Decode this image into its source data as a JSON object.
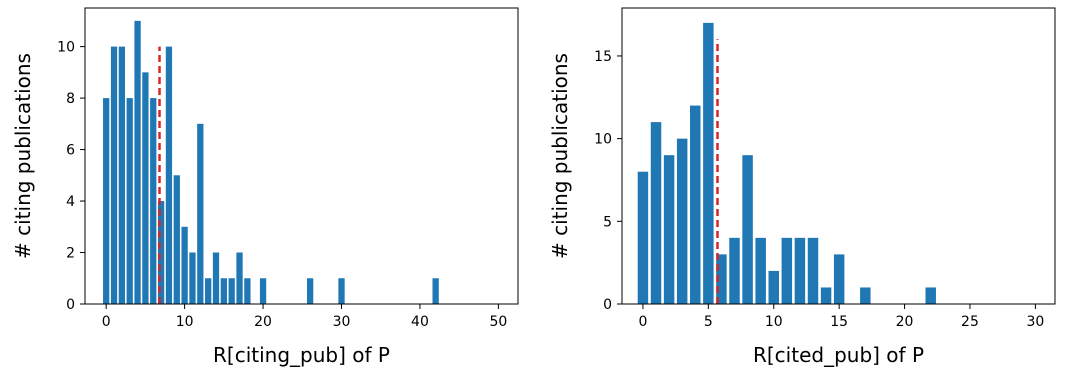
{
  "colors": {
    "bar": "#1f77b4",
    "marker": "#d62728",
    "axis": "#000000"
  },
  "chart_data": [
    {
      "type": "bar",
      "xlabel": "R[citing_pub] of P",
      "ylabel": "# citing publications",
      "xlim": [
        -2.7,
        52.5
      ],
      "ylim": [
        0,
        11.5
      ],
      "xticks": [
        0,
        10,
        20,
        30,
        40,
        50
      ],
      "yticks": [
        0,
        2,
        4,
        6,
        8,
        10
      ],
      "x": [
        0,
        1,
        2,
        3,
        4,
        5,
        6,
        7,
        8,
        9,
        10,
        11,
        12,
        13,
        14,
        15,
        16,
        17,
        18,
        20,
        26,
        30,
        42
      ],
      "values": [
        8,
        10,
        10,
        8,
        11,
        9,
        8,
        4,
        10,
        5,
        3,
        2,
        7,
        1,
        2,
        1,
        1,
        2,
        1,
        1,
        1,
        1,
        1
      ],
      "reference_line": {
        "x": 6.8,
        "y_top": 10
      },
      "grid": false,
      "legend": "none"
    },
    {
      "type": "bar",
      "xlabel": "R[cited_pub] of P",
      "ylabel": "# citing publications",
      "xlim": [
        -1.6,
        31.5
      ],
      "ylim": [
        0,
        17.9
      ],
      "xticks": [
        0,
        5,
        10,
        15,
        20,
        25,
        30
      ],
      "yticks": [
        0,
        5,
        10,
        15
      ],
      "x": [
        0,
        1,
        2,
        3,
        4,
        5,
        6,
        7,
        8,
        9,
        10,
        11,
        12,
        13,
        14,
        15,
        17,
        22
      ],
      "values": [
        8,
        11,
        9,
        10,
        12,
        17,
        3,
        4,
        9,
        4,
        2,
        4,
        4,
        4,
        1,
        3,
        1,
        1
      ],
      "reference_line": {
        "x": 5.7,
        "y_top": 16
      },
      "grid": false,
      "legend": "none"
    }
  ]
}
